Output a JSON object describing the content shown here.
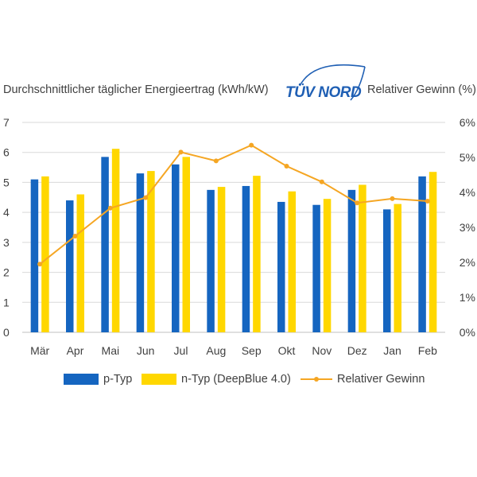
{
  "chart_data": {
    "type": "bar",
    "title_left": "Durchschnittlicher täglicher Energieertrag  (kWh/kW)",
    "title_right": "Relativer Gewinn  (%)",
    "logo_text": "TÜV NORD",
    "categories": [
      "Mär",
      "Apr",
      "Mai",
      "Jun",
      "Jul",
      "Aug",
      "Sep",
      "Okt",
      "Nov",
      "Dez",
      "Jan",
      "Feb"
    ],
    "series": [
      {
        "name": "p-Typ",
        "type": "bar",
        "axis": "left",
        "color": "#1565c0",
        "values": [
          5.1,
          4.4,
          5.85,
          5.3,
          5.6,
          4.75,
          4.88,
          4.35,
          4.25,
          4.75,
          4.1,
          5.2
        ]
      },
      {
        "name": "n-Typ (DeepBlue 4.0)",
        "type": "bar",
        "axis": "left",
        "color": "#ffd700",
        "values": [
          5.2,
          4.6,
          6.12,
          5.38,
          5.85,
          4.85,
          5.22,
          4.7,
          4.45,
          4.92,
          4.28,
          5.35
        ]
      },
      {
        "name": "Relativer Gewinn",
        "type": "line",
        "axis": "right",
        "color": "#f5a623",
        "values": [
          1.95,
          2.75,
          3.55,
          3.85,
          5.15,
          4.9,
          5.35,
          4.75,
          4.3,
          3.7,
          3.82,
          3.75
        ]
      }
    ],
    "y_left": {
      "min": 0,
      "max": 7,
      "ticks": [
        "0",
        "1",
        "2",
        "3",
        "4",
        "5",
        "6",
        "7"
      ]
    },
    "y_right": {
      "min": 0,
      "max": 6,
      "ticks": [
        "0%",
        "1%",
        "2%",
        "3%",
        "4%",
        "5%",
        "6%"
      ]
    },
    "grid": true,
    "legend_position": "bottom"
  }
}
